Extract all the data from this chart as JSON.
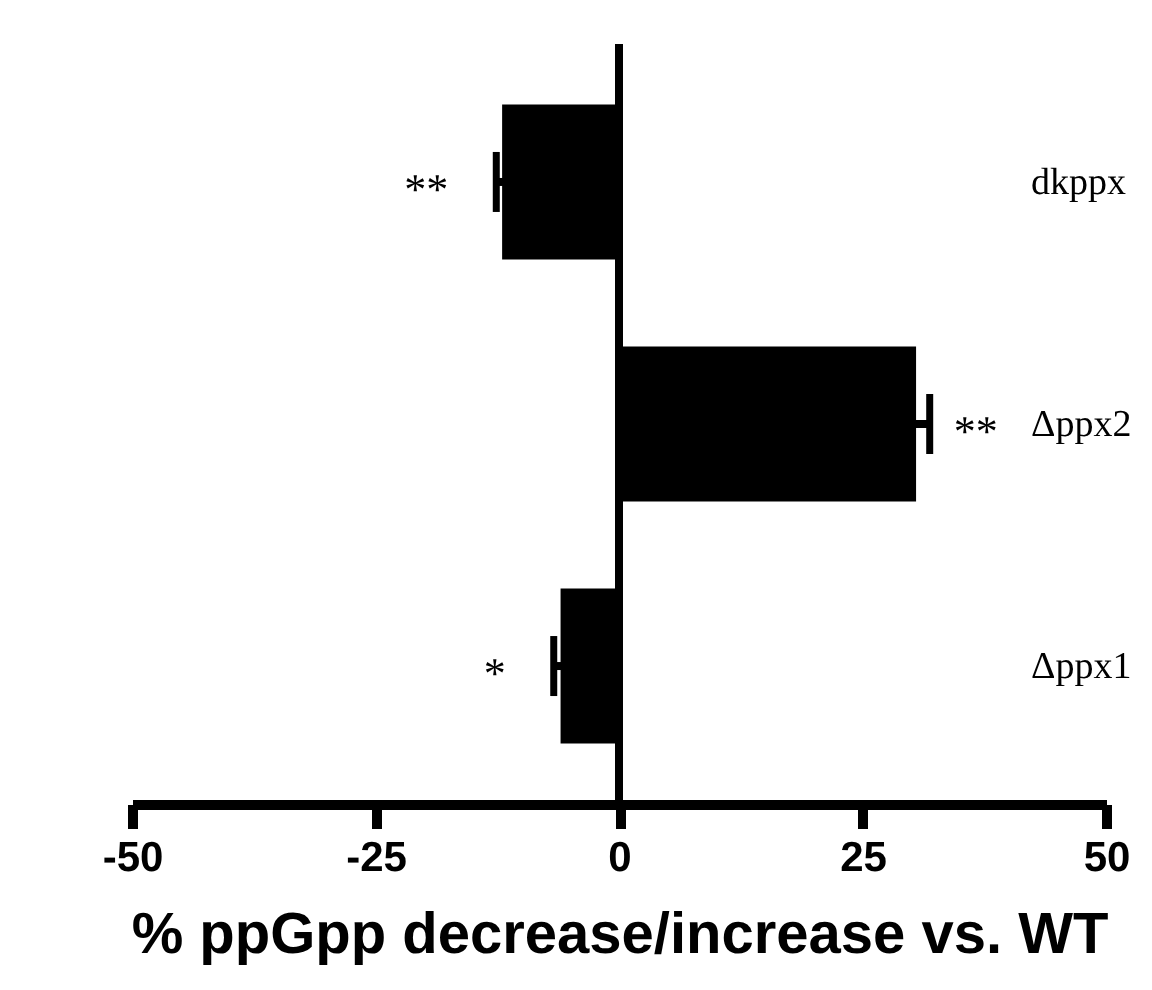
{
  "chart_data": {
    "type": "bar",
    "orientation": "horizontal",
    "xlabel": "% ppGpp decrease/increase vs. WT",
    "categories": [
      "dkppx",
      "Δppx2",
      "Δppx1"
    ],
    "values": [
      -12.0,
      30.5,
      -6.0
    ],
    "errors": [
      0.6,
      1.4,
      0.7
    ],
    "color": "#000000",
    "xlim": [
      -50,
      50
    ],
    "xticks": [
      -50,
      -25,
      0,
      25,
      50
    ],
    "ref_lines": [
      {
        "axis": "x",
        "value": 0
      }
    ],
    "annotations": [
      "**",
      "**",
      "*"
    ],
    "grid": false
  }
}
